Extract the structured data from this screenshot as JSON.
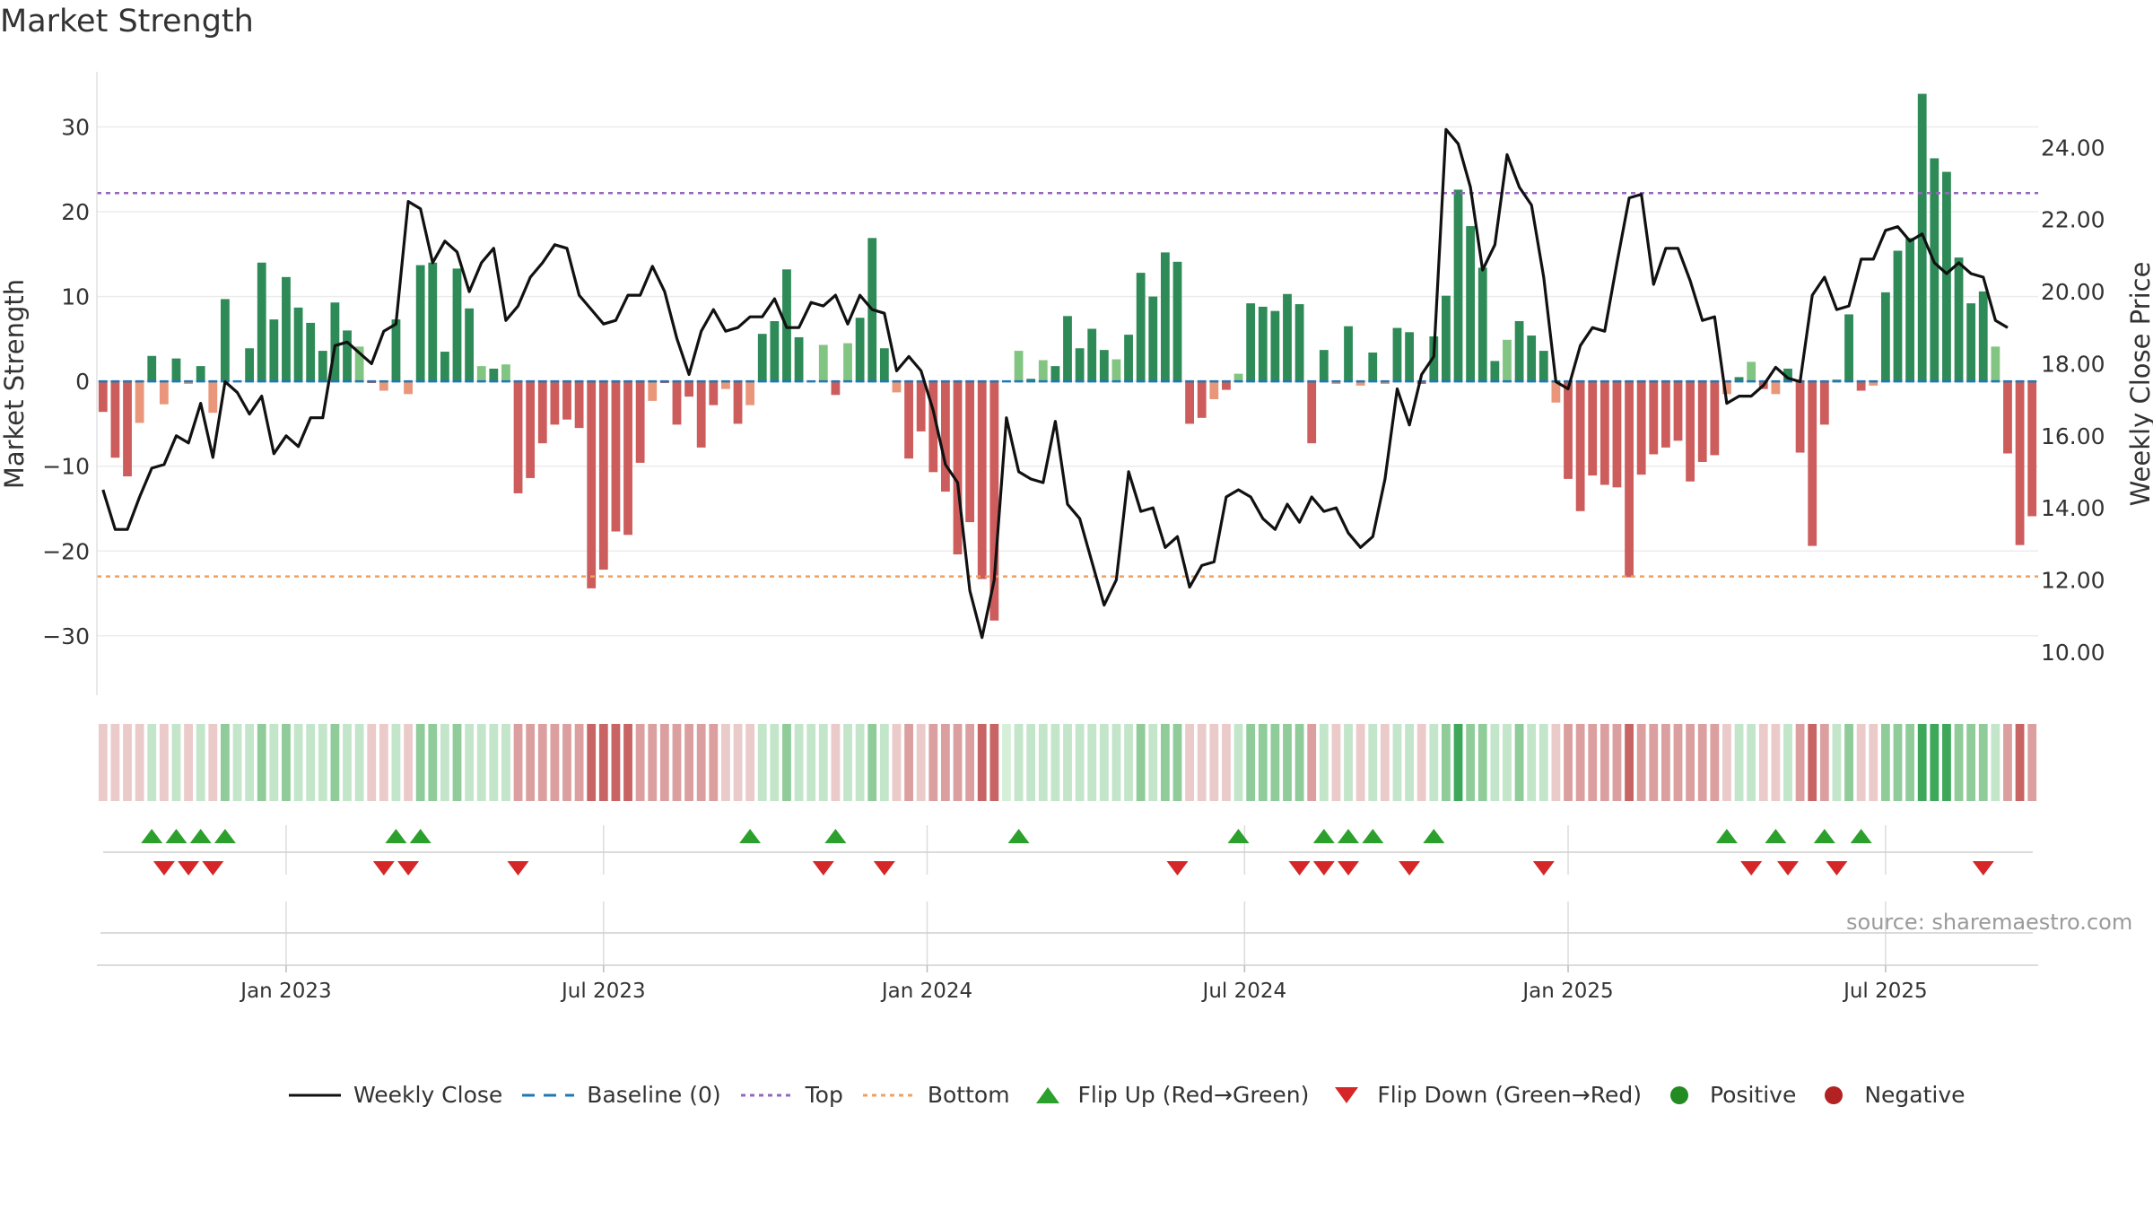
{
  "chart_data": {
    "type": "bar+line",
    "title": "Market Strength",
    "ylabel_left": "Market Strength",
    "ylabel_right": "Weekly Close Price",
    "ylim_left": [
      -37,
      36.5
    ],
    "ylim_right": [
      8.8,
      26.1
    ],
    "yticks_left": [
      30,
      20,
      10,
      0,
      -10,
      -20,
      -30
    ],
    "ytick_labels_left": [
      "30",
      "20",
      "10",
      "0",
      "−10",
      "−20",
      "−30"
    ],
    "yticks_right": [
      24,
      22,
      20,
      18,
      16,
      14,
      12,
      10
    ],
    "ytick_labels_right": [
      "24.00",
      "22.00",
      "20.00",
      "18.00",
      "16.00",
      "14.00",
      "12.00",
      "10.00"
    ],
    "x_ticks": [
      {
        "label": "Jan 2023",
        "week": 15
      },
      {
        "label": "Jul 2023",
        "week": 41
      },
      {
        "label": "Jan 2024",
        "week": 67.5
      },
      {
        "label": "Jul 2024",
        "week": 93.5
      },
      {
        "label": "Jan 2025",
        "week": 120
      },
      {
        "label": "Jul 2025",
        "week": 146
      }
    ],
    "top_line": 22.2,
    "bottom_line": -23,
    "strength": [
      -3.6,
      -9,
      -11.2,
      -4.9,
      3,
      -2.7,
      2.7,
      -0.3,
      1.8,
      -3.7,
      9.7,
      0,
      3.9,
      14,
      7.3,
      12.3,
      8.7,
      6.9,
      3.6,
      9.3,
      6,
      4.1,
      -0.2,
      -1.1,
      7.3,
      -1.5,
      13.7,
      14,
      3.5,
      13.3,
      8.6,
      1.8,
      1.5,
      2,
      -13.2,
      -11.4,
      -7.3,
      -5.1,
      -4.5,
      -5.5,
      -24.4,
      -22.2,
      -17.7,
      -18.1,
      -9.6,
      -2.3,
      -0.2,
      -5.1,
      -1.8,
      -7.8,
      -2.8,
      -0.9,
      -5,
      -2.8,
      5.6,
      7.1,
      13.2,
      5.2,
      0,
      4.3,
      -1.6,
      4.5,
      7.5,
      16.9,
      3.9,
      -1.3,
      -9.1,
      -5.9,
      -10.7,
      -13,
      -20.4,
      -16.6,
      -23.3,
      -28.2,
      0,
      3.6,
      0.3,
      2.5,
      1.8,
      7.7,
      3.9,
      6.2,
      3.7,
      2.6,
      5.5,
      12.8,
      10,
      15.2,
      14.1,
      -5,
      -4.3,
      -2.1,
      -1,
      0.9,
      9.2,
      8.8,
      8.3,
      10.3,
      9.1,
      -7.3,
      3.7,
      -0.3,
      6.5,
      -0.5,
      3.4,
      -0.3,
      6.3,
      5.8,
      -0.3,
      5.3,
      10.1,
      22.6,
      18.3,
      13.4,
      2.4,
      4.9,
      7.1,
      5.4,
      3.6,
      -2.5,
      -11.5,
      -15.3,
      -11.1,
      -12.2,
      -12.5,
      -23.1,
      -11,
      -8.6,
      -7.8,
      -7,
      -11.8,
      -9.5,
      -8.7,
      -1.5,
      0.5,
      2.3,
      -0.9,
      -1.5,
      1.5,
      -8.4,
      -19.4,
      -5.1,
      0.2,
      7.9,
      -1.1,
      -0.5,
      10.5,
      15.4,
      16.9,
      33.9,
      26.3,
      24.7,
      14.6,
      9.2,
      10.6,
      4.1,
      -8.5,
      -19.3,
      -15.9
    ],
    "strength_series_colors": {
      "positive_strong": "#2e8b57",
      "positive_weak": "#82c582",
      "negative_strong": "#cd5c5c",
      "negative_weak": "#e9967a"
    },
    "weekly_close": [
      14.5,
      13.4,
      13.4,
      14.3,
      15.1,
      15.2,
      16,
      15.8,
      16.9,
      15.4,
      17.5,
      17.2,
      16.6,
      17.1,
      15.5,
      16,
      15.7,
      16.5,
      16.5,
      18.5,
      18.6,
      18.3,
      18,
      18.9,
      19.1,
      22.5,
      22.3,
      20.8,
      21.4,
      21.1,
      20,
      20.8,
      21.2,
      19.2,
      19.6,
      20.4,
      20.8,
      21.3,
      21.2,
      19.9,
      19.5,
      19.1,
      19.2,
      19.9,
      19.9,
      20.7,
      20,
      18.7,
      17.7,
      18.9,
      19.5,
      18.9,
      19,
      19.3,
      19.3,
      19.8,
      19,
      19,
      19.7,
      19.6,
      19.9,
      19.1,
      19.9,
      19.5,
      19.4,
      17.8,
      18.2,
      17.8,
      16.7,
      15.2,
      14.7,
      11.7,
      10.4,
      12,
      16.5,
      15,
      14.8,
      14.7,
      16.4,
      14.1,
      13.7,
      12.5,
      11.3,
      12,
      15,
      13.9,
      14,
      12.9,
      13.2,
      11.8,
      12.4,
      12.5,
      14.3,
      14.5,
      14.3,
      13.7,
      13.4,
      14.1,
      13.6,
      14.3,
      13.9,
      14,
      13.3,
      12.9,
      13.2,
      14.8,
      17.3,
      16.3,
      17.7,
      18.2,
      24.5,
      24.1,
      22.9,
      20.6,
      21.3,
      23.8,
      22.9,
      22.4,
      20.4,
      17.5,
      17.3,
      18.5,
      19,
      18.9,
      20.8,
      22.6,
      22.7,
      20.2,
      21.2,
      21.2,
      20.3,
      19.2,
      19.3,
      16.9,
      17.1,
      17.1,
      17.4,
      17.9,
      17.6,
      17.5,
      19.9,
      20.4,
      19.5,
      19.6,
      20.9,
      20.9,
      21.7,
      21.8,
      21.4,
      21.6,
      20.8,
      20.5,
      20.8,
      20.5,
      20.4,
      19.2,
      19
    ],
    "state_band": [
      -1,
      -1,
      -1,
      -1,
      1,
      -1,
      1,
      -1,
      1,
      -1,
      2,
      1,
      1,
      2,
      1,
      2,
      1,
      1,
      1,
      2,
      1,
      1,
      -1,
      -1,
      1,
      -1,
      2,
      2,
      1,
      2,
      1,
      1,
      1,
      1,
      -2,
      -2,
      -2,
      -2,
      -2,
      -2,
      -3,
      -3,
      -3,
      -3,
      -2,
      -2,
      -2,
      -2,
      -2,
      -2,
      -2,
      -1,
      -1,
      -1,
      1,
      1,
      2,
      1,
      1,
      1,
      -1,
      1,
      1,
      2,
      1,
      -1,
      -2,
      -1,
      -2,
      -2,
      -2,
      -2,
      -3,
      -3,
      0,
      1,
      1,
      1,
      1,
      1,
      1,
      1,
      1,
      1,
      1,
      2,
      1,
      2,
      2,
      -1,
      -1,
      -1,
      -1,
      1,
      2,
      2,
      2,
      2,
      2,
      -2,
      1,
      -1,
      1,
      -1,
      1,
      -1,
      1,
      1,
      -1,
      1,
      2,
      3,
      2,
      2,
      1,
      1,
      2,
      1,
      1,
      -1,
      -2,
      -2,
      -2,
      -2,
      -2,
      -3,
      -2,
      -2,
      -2,
      -2,
      -2,
      -2,
      -2,
      -1,
      1,
      1,
      -1,
      -1,
      1,
      -2,
      -3,
      -2,
      1,
      2,
      -1,
      -1,
      2,
      2,
      2,
      3,
      3,
      3,
      2,
      2,
      2,
      1,
      -2,
      -3,
      -2
    ],
    "flip_up_weeks": [
      4,
      6,
      8,
      10,
      24,
      26,
      53,
      60,
      75,
      93,
      100,
      102,
      104,
      109,
      133,
      137,
      141,
      144
    ],
    "flip_down_weeks": [
      5,
      7,
      9,
      23,
      25,
      34,
      59,
      64,
      88,
      98,
      100,
      102,
      107,
      118,
      135,
      138,
      142,
      154
    ],
    "legend": [
      "Weekly Close",
      "Baseline (0)",
      "Top",
      "Bottom",
      "Flip Up (Red→Green)",
      "Flip Down (Green→Red)",
      "Positive",
      "Negative"
    ],
    "colors": {
      "close": "#111111",
      "baseline": "#1f77b4",
      "top": "#9467bd",
      "bottom": "#f0a060",
      "flip_up": "#2ca02c",
      "flip_down": "#d62728",
      "positive": "#228b22",
      "negative": "#b22222"
    }
  },
  "source_text": "source: sharemaestro.com"
}
